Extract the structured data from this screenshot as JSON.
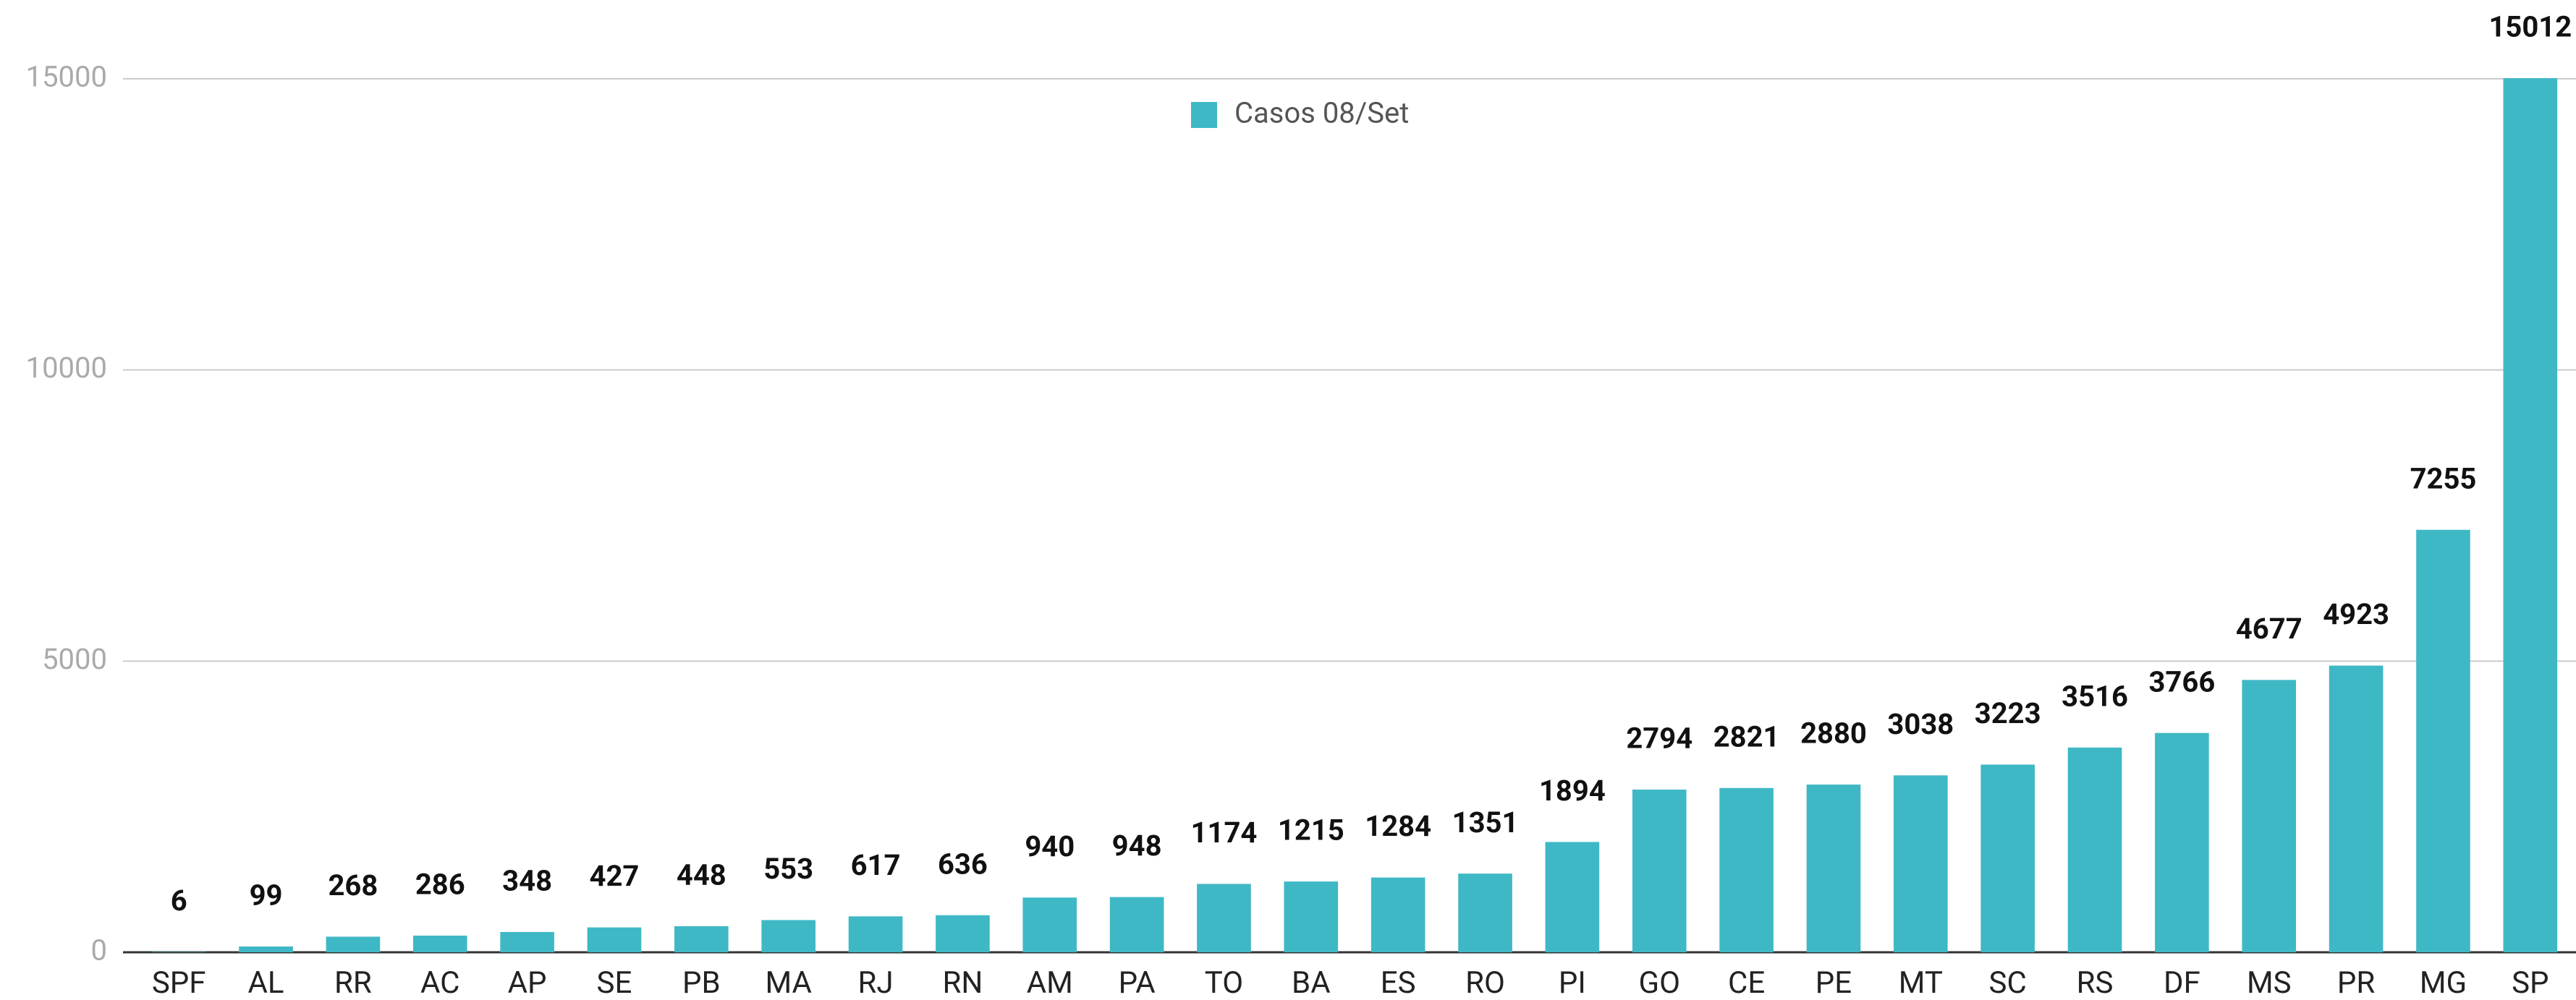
{
  "chart_data": {
    "type": "bar",
    "categories": [
      "SPF",
      "AL",
      "RR",
      "AC",
      "AP",
      "SE",
      "PB",
      "MA",
      "RJ",
      "RN",
      "AM",
      "PA",
      "TO",
      "BA",
      "ES",
      "RO",
      "PI",
      "GO",
      "CE",
      "PE",
      "MT",
      "SC",
      "RS",
      "DF",
      "MS",
      "PR",
      "MG",
      "SP"
    ],
    "series": [
      {
        "name": "Casos 08/Set",
        "color": "#3fb8c5",
        "values": [
          6,
          99,
          268,
          286,
          348,
          427,
          448,
          553,
          617,
          636,
          940,
          948,
          1174,
          1215,
          1284,
          1351,
          1894,
          2794,
          2821,
          2880,
          3038,
          3223,
          3516,
          3766,
          4677,
          4923,
          7255,
          15012
        ]
      }
    ],
    "ylim": [
      0,
      15000
    ],
    "yticks": [
      0,
      5000,
      10000,
      15000
    ],
    "grid": true,
    "legend": "top"
  }
}
